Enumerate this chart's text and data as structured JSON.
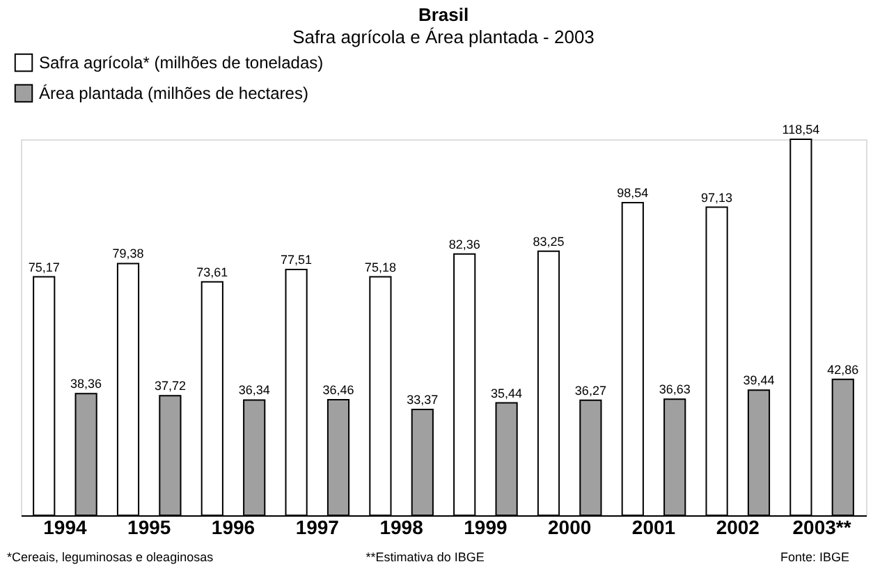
{
  "chart_data": {
    "type": "bar",
    "title": "Brasil",
    "subtitle": "Safra agrícola e Área plantada - 2003",
    "categories": [
      "1994",
      "1995",
      "1996",
      "1997",
      "1998",
      "1999",
      "2000",
      "2001",
      "2002",
      "2003**"
    ],
    "series": [
      {
        "name": "Safra agrícola* (milhões de toneladas)",
        "color": "#ffffff",
        "values": [
          75.17,
          79.38,
          73.61,
          77.51,
          75.18,
          82.36,
          83.25,
          98.54,
          97.13,
          118.54
        ],
        "value_labels": [
          "75,17",
          "79,38",
          "73,61",
          "77,51",
          "75,18",
          "82,36",
          "83,25",
          "98,54",
          "97,13",
          "118,54"
        ]
      },
      {
        "name": "Área plantada (milhões de hectares)",
        "color": "#a0a0a0",
        "values": [
          38.36,
          37.72,
          36.34,
          36.46,
          33.37,
          35.44,
          36.27,
          36.63,
          39.44,
          42.86
        ],
        "value_labels": [
          "38,36",
          "37,72",
          "36,34",
          "36,46",
          "33,37",
          "35,44",
          "36,27",
          "36,63",
          "39,44",
          "42,86"
        ]
      }
    ],
    "grid": false,
    "legend": "top left",
    "annotations": [
      "*Cereais, leguminosas e oleaginosas",
      "**Estimativa do IBGE",
      "Fonte: IBGE"
    ]
  }
}
